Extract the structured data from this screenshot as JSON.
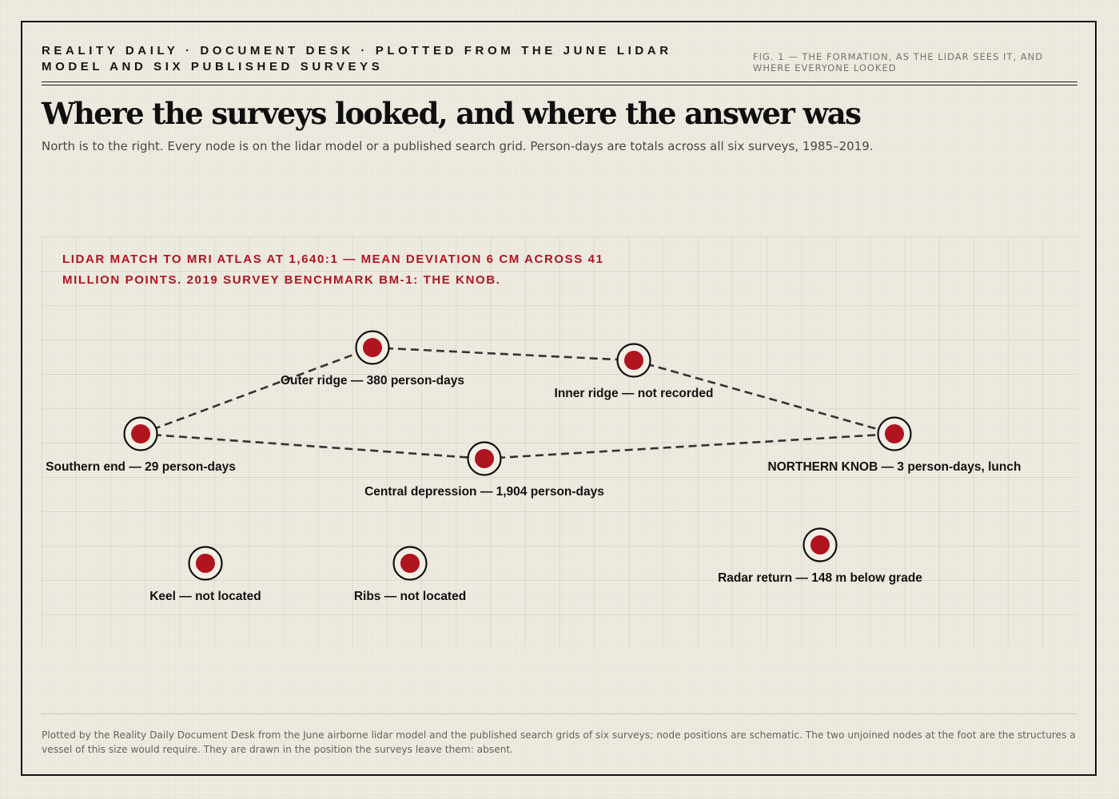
{
  "header": {
    "kicker": "REALITY DAILY · DOCUMENT DESK · PLOTTED FROM THE JUNE LIDAR MODEL AND SIX PUBLISHED SURVEYS",
    "figure_label": "FIG. 1 — THE FORMATION, AS THE LIDAR SEES IT, AND WHERE EVERYONE LOOKED"
  },
  "headline": "Where the surveys looked, and where the answer was",
  "dek": "North is to the right. Every node is on the lidar model or a published search grid. Person-days are totals across all six surveys, 1985–2019.",
  "diagram": {
    "callout": "LIDAR MATCH TO MRI ATLAS AT 1,640:1 — MEAN DEVIATION 6 CM ACROSS 41 MILLION POINTS. 2019 SURVEY BENCHMARK BM-1: THE KNOB.",
    "accent_color": "#b0141f",
    "nodes": [
      {
        "id": "southern-end",
        "label": "Southern end — 29 person-days"
      },
      {
        "id": "outer-ridge",
        "label": "Outer ridge — 380 person-days"
      },
      {
        "id": "inner-ridge",
        "label": "Inner ridge — not recorded"
      },
      {
        "id": "northern-knob",
        "label": "NORTHERN KNOB — 3 person-days, lunch"
      },
      {
        "id": "central-depression",
        "label": "Central depression — 1,904 person-days"
      },
      {
        "id": "keel",
        "label": "Keel — not located"
      },
      {
        "id": "ribs",
        "label": "Ribs — not located"
      },
      {
        "id": "radar-return",
        "label": "Radar return — 148 m below grade"
      }
    ],
    "edges": [
      {
        "from": "southern-end",
        "to": "outer-ridge"
      },
      {
        "from": "outer-ridge",
        "to": "inner-ridge"
      },
      {
        "from": "inner-ridge",
        "to": "northern-knob"
      },
      {
        "from": "southern-end",
        "to": "central-depression"
      },
      {
        "from": "central-depression",
        "to": "northern-knob"
      }
    ]
  },
  "footnote": "Plotted by the Reality Daily Document Desk from the June airborne lidar model and the published search grids of six surveys; node positions are schematic. The two unjoined nodes at the foot are the structures a vessel of this size would require. They are drawn in the position the surveys leave them: absent."
}
